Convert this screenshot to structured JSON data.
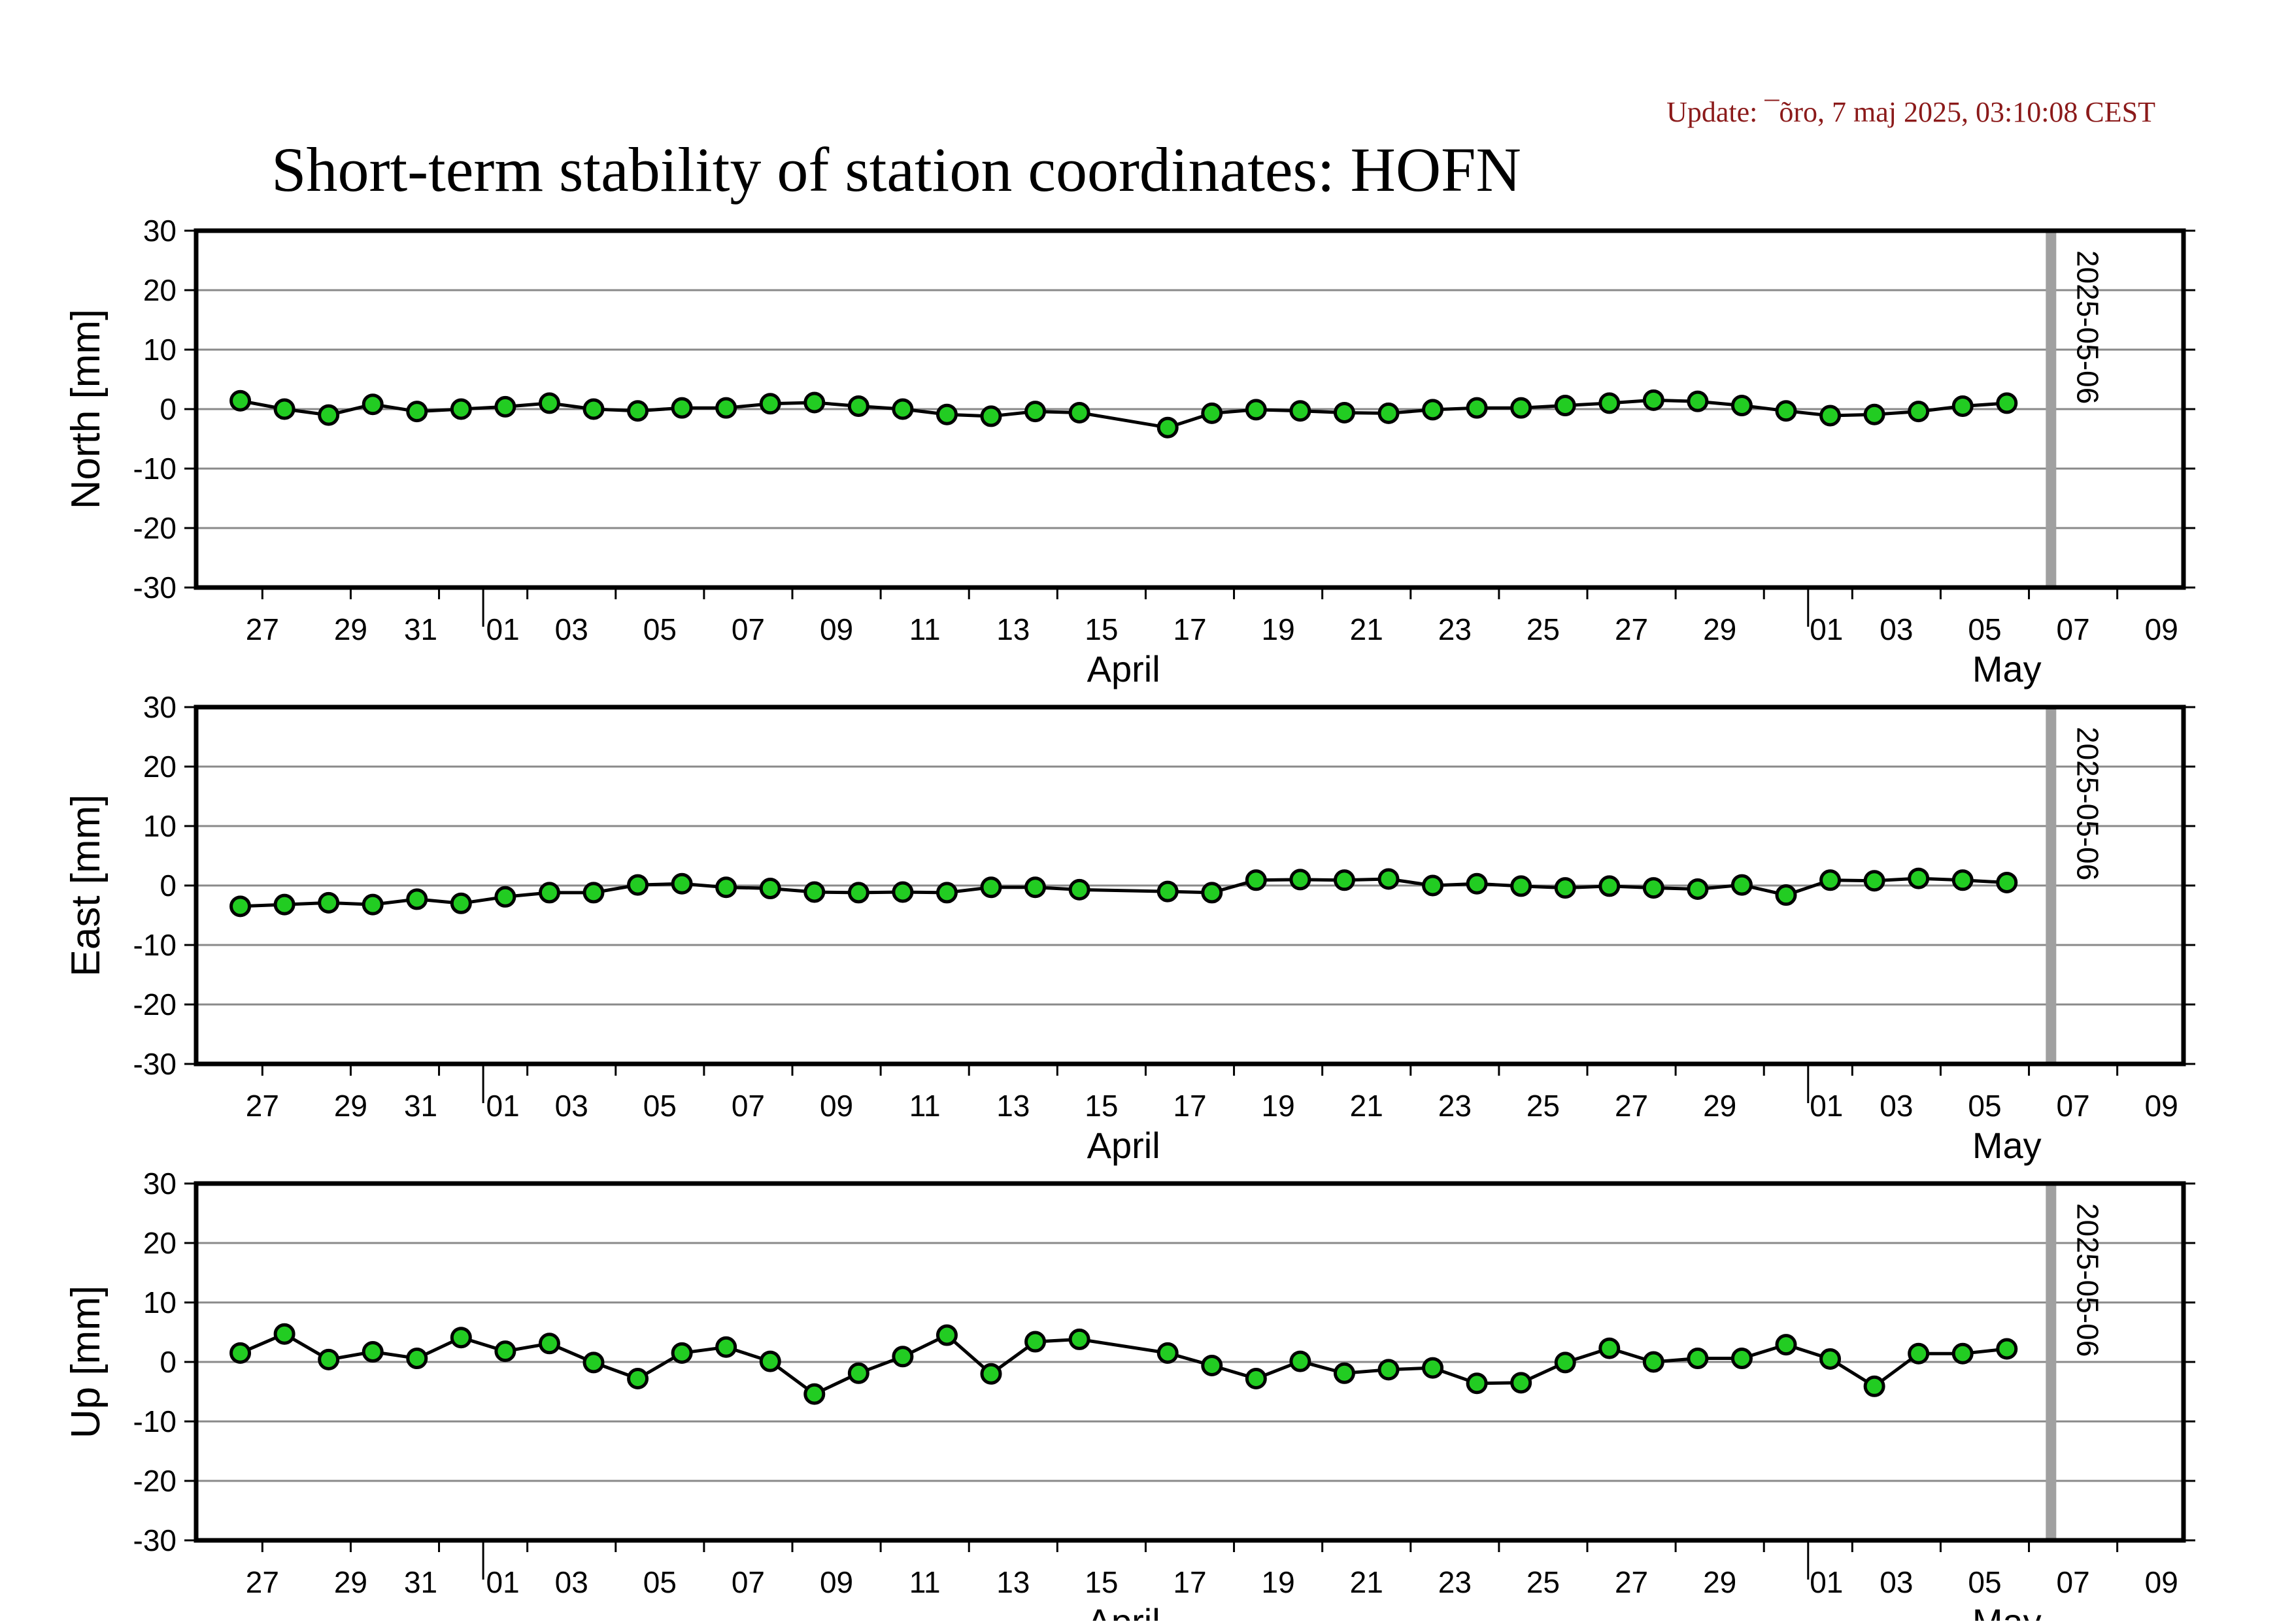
{
  "update_text": "Update: ¯õro, 7 maj 2025, 03:10:08 CEST",
  "chart_data": {
    "type": "line",
    "title": "Short-term stability of station coordinates: HOFN",
    "x_range": [
      "2025-03-25T12:00",
      "2025-05-09T12:00"
    ],
    "x_tick_labels": [
      "27",
      "29",
      "31",
      "01",
      "03",
      "05",
      "07",
      "09",
      "11",
      "13",
      "15",
      "17",
      "19",
      "21",
      "23",
      "25",
      "27",
      "29",
      "01",
      "03",
      "05",
      "07",
      "09"
    ],
    "x_month_labels": [
      "April",
      "May"
    ],
    "marker": {
      "date": "2025-05-06",
      "label": "2025-05-06",
      "color": "#a0a0a0"
    },
    "y_ticks": [
      30,
      20,
      10,
      0,
      -10,
      -20,
      -30
    ],
    "line_color": "#000000",
    "point_color": "#22cc22",
    "grid": true,
    "panels": [
      {
        "ylabel": "North [mm]",
        "ylim": [
          -30,
          30
        ],
        "dates": [
          "2025-03-26",
          "2025-03-27",
          "2025-03-28",
          "2025-03-29",
          "2025-03-30",
          "2025-03-31",
          "2025-04-01",
          "2025-04-02",
          "2025-04-03",
          "2025-04-04",
          "2025-04-05",
          "2025-04-06",
          "2025-04-07",
          "2025-04-08",
          "2025-04-09",
          "2025-04-10",
          "2025-04-11",
          "2025-04-12",
          "2025-04-13",
          "2025-04-14",
          "2025-04-16",
          "2025-04-17",
          "2025-04-18",
          "2025-04-19",
          "2025-04-20",
          "2025-04-21",
          "2025-04-22",
          "2025-04-23",
          "2025-04-24",
          "2025-04-25",
          "2025-04-26",
          "2025-04-27",
          "2025-04-28",
          "2025-04-29",
          "2025-04-30",
          "2025-05-01",
          "2025-05-02",
          "2025-05-03",
          "2025-05-04",
          "2025-05-05"
        ],
        "values": [
          1.4,
          0.0,
          -1.0,
          0.8,
          -0.4,
          0.0,
          0.4,
          1.0,
          0.0,
          -0.3,
          0.2,
          0.2,
          0.9,
          1.1,
          0.5,
          0.0,
          -0.9,
          -1.2,
          -0.4,
          -0.6,
          -3.1,
          -0.7,
          -0.1,
          -0.3,
          -0.6,
          -0.7,
          -0.1,
          0.2,
          0.2,
          0.6,
          1.0,
          1.5,
          1.3,
          0.6,
          -0.3,
          -1.1,
          -0.9,
          -0.4,
          0.5,
          1.0
        ]
      },
      {
        "ylabel": "East [mm]",
        "ylim": [
          -30,
          30
        ],
        "dates": [
          "2025-03-26",
          "2025-03-27",
          "2025-03-28",
          "2025-03-29",
          "2025-03-30",
          "2025-03-31",
          "2025-04-01",
          "2025-04-02",
          "2025-04-03",
          "2025-04-04",
          "2025-04-05",
          "2025-04-06",
          "2025-04-07",
          "2025-04-08",
          "2025-04-09",
          "2025-04-10",
          "2025-04-11",
          "2025-04-12",
          "2025-04-13",
          "2025-04-14",
          "2025-04-16",
          "2025-04-17",
          "2025-04-18",
          "2025-04-19",
          "2025-04-20",
          "2025-04-21",
          "2025-04-22",
          "2025-04-23",
          "2025-04-24",
          "2025-04-25",
          "2025-04-26",
          "2025-04-27",
          "2025-04-28",
          "2025-04-29",
          "2025-04-30",
          "2025-05-01",
          "2025-05-02",
          "2025-05-03",
          "2025-05-04",
          "2025-05-05"
        ],
        "values": [
          -3.5,
          -3.2,
          -2.9,
          -3.2,
          -2.3,
          -3.0,
          -1.9,
          -1.2,
          -1.2,
          0.1,
          0.3,
          -0.3,
          -0.5,
          -1.1,
          -1.2,
          -1.1,
          -1.2,
          -0.3,
          -0.3,
          -0.7,
          -1.0,
          -1.2,
          0.9,
          1.0,
          0.9,
          1.1,
          0.0,
          0.3,
          -0.1,
          -0.4,
          -0.1,
          -0.4,
          -0.6,
          0.1,
          -1.6,
          0.9,
          0.8,
          1.2,
          0.9,
          0.5
        ]
      },
      {
        "ylabel": "Up [mm]",
        "ylim": [
          -30,
          30
        ],
        "dates": [
          "2025-03-26",
          "2025-03-27",
          "2025-03-28",
          "2025-03-29",
          "2025-03-30",
          "2025-03-31",
          "2025-04-01",
          "2025-04-02",
          "2025-04-03",
          "2025-04-04",
          "2025-04-05",
          "2025-04-06",
          "2025-04-07",
          "2025-04-08",
          "2025-04-09",
          "2025-04-10",
          "2025-04-11",
          "2025-04-12",
          "2025-04-13",
          "2025-04-14",
          "2025-04-16",
          "2025-04-17",
          "2025-04-18",
          "2025-04-19",
          "2025-04-20",
          "2025-04-21",
          "2025-04-22",
          "2025-04-23",
          "2025-04-24",
          "2025-04-25",
          "2025-04-26",
          "2025-04-27",
          "2025-04-28",
          "2025-04-29",
          "2025-04-30",
          "2025-05-01",
          "2025-05-02",
          "2025-05-03",
          "2025-05-04",
          "2025-05-05"
        ],
        "values": [
          1.5,
          4.7,
          0.4,
          1.7,
          0.6,
          4.1,
          1.8,
          3.1,
          -0.1,
          -2.8,
          1.5,
          2.5,
          0.1,
          -5.4,
          -1.9,
          0.9,
          4.5,
          -2.0,
          3.4,
          3.8,
          1.5,
          -0.6,
          -2.8,
          0.1,
          -1.9,
          -1.3,
          -1.0,
          -3.6,
          -3.5,
          -0.1,
          2.3,
          0.0,
          0.6,
          0.6,
          2.9,
          0.5,
          -4.1,
          1.4,
          1.4,
          2.2
        ]
      }
    ]
  }
}
